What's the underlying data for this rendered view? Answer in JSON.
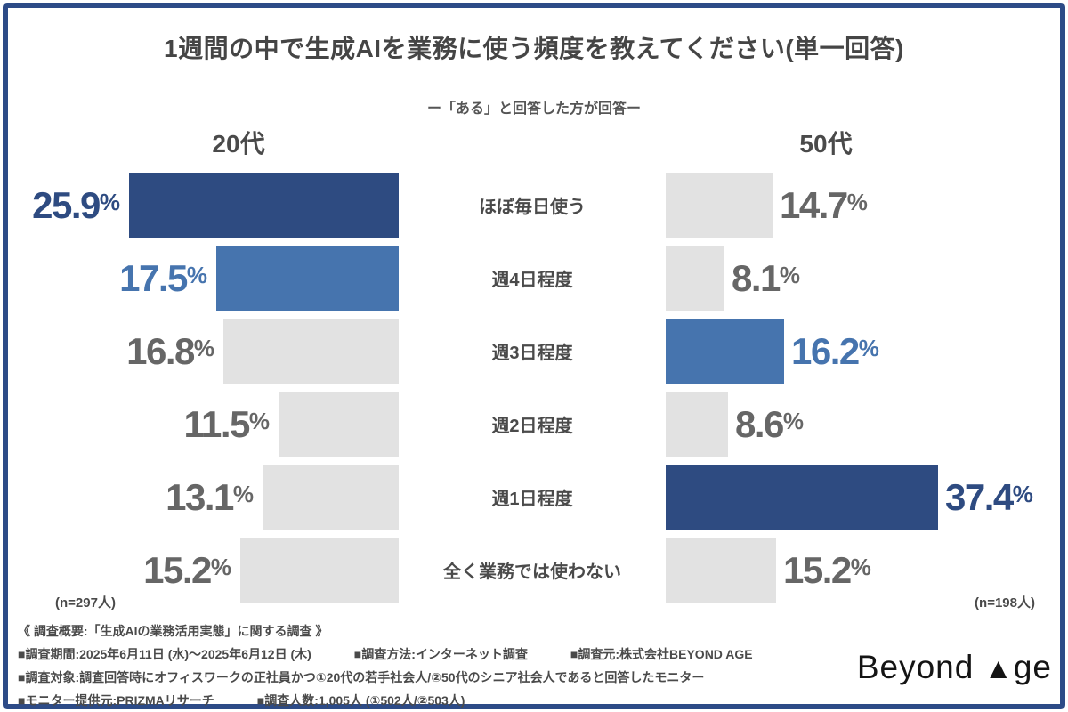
{
  "header": {
    "title": "1週間の中で生成AIを業務に使う頻度を教えてください(単一回答)",
    "subtitle": "ー「ある」と回答した方が回答ー"
  },
  "chart_data": {
    "type": "bar",
    "orientation": "horizontal",
    "layout": "butterfly-comparison",
    "unit": "%",
    "value_labels_shown": true,
    "xlim": [
      0,
      40
    ],
    "categories": [
      "ほぼ毎日使う",
      "週4日程度",
      "週3日程度",
      "週2日程度",
      "週1日程度",
      "全く業務では使わない"
    ],
    "series": [
      {
        "name": "20代",
        "side": "left",
        "n_label": "(n=297人)",
        "values": [
          25.9,
          17.5,
          16.8,
          11.5,
          13.1,
          15.2
        ],
        "emphasis": [
          "dark",
          "medium",
          "none",
          "none",
          "none",
          "none"
        ]
      },
      {
        "name": "50代",
        "side": "right",
        "n_label": "(n=198人)",
        "values": [
          14.7,
          8.1,
          16.2,
          8.6,
          37.4,
          15.2
        ],
        "emphasis": [
          "none",
          "none",
          "medium",
          "none",
          "dark",
          "none"
        ]
      }
    ],
    "colors": {
      "dark": "#2e4b81",
      "medium": "#4674ae",
      "neutral": "#e2e2e2",
      "text_neutral": "#666666",
      "frame_border": "#2d4b87"
    }
  },
  "footer": {
    "lines": [
      [
        "《 調査概要:「生成AIの業務活用実態」に関する調査 》"
      ],
      [
        "■調査期間:2025年6月11日 (水)〜2025年6月12日 (木)",
        "■調査方法:インターネット調査",
        "■調査元:株式会社BEYOND AGE"
      ],
      [
        "■調査対象:調査回答時にオフィスワークの正社員かつ①20代の若手社会人/②50代のシニア社会人であると回答したモニター"
      ],
      [
        "■モニター提供元:PRIZMAリサーチ",
        "■調査人数:1,005人 (①502人/②503人)"
      ]
    ]
  },
  "logo": {
    "prefix": "Beyond ",
    "triangle": "▲",
    "suffix": "ge"
  }
}
